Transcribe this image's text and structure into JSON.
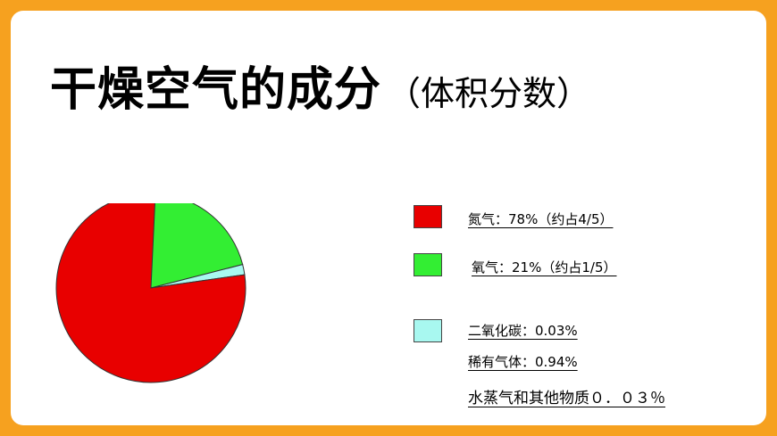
{
  "title": {
    "main": "干燥空气的成分",
    "sub": "（体积分数）"
  },
  "legend": [
    {
      "label": "氮气：78%（约占4/5）",
      "color": "#e80000"
    },
    {
      "label": "氧气：21%（约占1/5）",
      "color": "#33ee33"
    },
    {
      "label": "二氧化碳：0.03%",
      "color": "#a8f8f0"
    },
    {
      "label": "稀有气体：0.94%"
    },
    {
      "label": "水蒸气和其他物质０．０３％"
    }
  ],
  "chart_data": {
    "type": "pie",
    "title": "干燥空气的成分（体积分数）",
    "slices": [
      {
        "name": "氮气",
        "value": 78,
        "color": "#e80000"
      },
      {
        "name": "氧气",
        "value": 21,
        "color": "#33ee33"
      },
      {
        "name": "其他",
        "value": 1,
        "color": "#a8f8f0"
      }
    ],
    "legend_position": "right"
  }
}
